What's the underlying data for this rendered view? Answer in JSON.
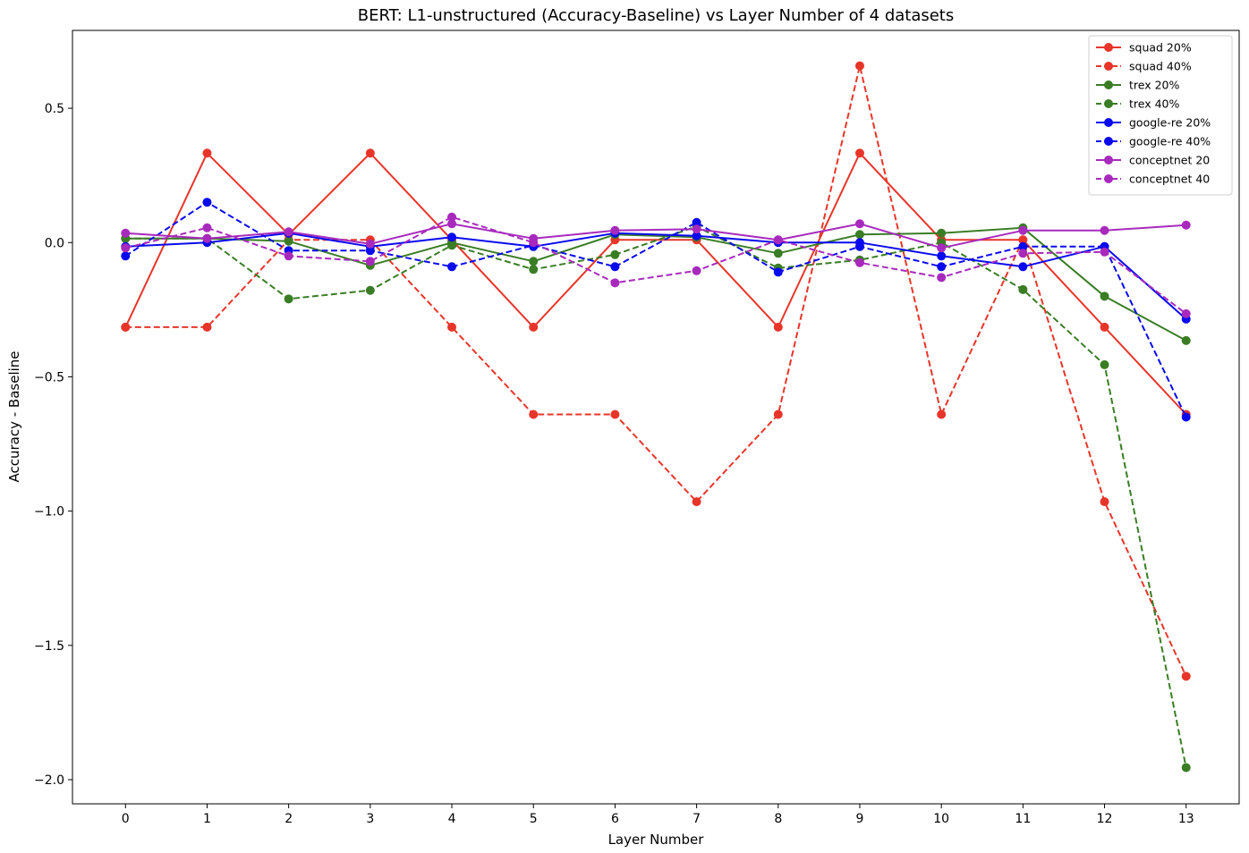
{
  "chart_data": {
    "type": "line",
    "title": "BERT: L1-unstructured (Accuracy-Baseline) vs Layer Number of 4 datasets",
    "xlabel": "Layer Number",
    "ylabel": "Accuracy - Baseline",
    "x": [
      0,
      1,
      2,
      3,
      4,
      5,
      6,
      7,
      8,
      9,
      10,
      11,
      12,
      13
    ],
    "xlim": [
      -0.65,
      13.65
    ],
    "ylim": [
      -2.09,
      0.79
    ],
    "xticks": [
      "0",
      "1",
      "2",
      "3",
      "4",
      "5",
      "6",
      "7",
      "8",
      "9",
      "10",
      "11",
      "12",
      "13"
    ],
    "yticks": [
      {
        "value": 0.5,
        "label": "0.5"
      },
      {
        "value": 0.0,
        "label": "0.0"
      },
      {
        "value": -0.5,
        "label": "−0.5"
      },
      {
        "value": -1.0,
        "label": "−1.0"
      },
      {
        "value": -1.5,
        "label": "−1.5"
      },
      {
        "value": -2.0,
        "label": "−2.0"
      }
    ],
    "grid": false,
    "legend_position": "top-right",
    "series": [
      {
        "name": "squad 20%",
        "color": "#e8352a",
        "dash": "solid",
        "values": [
          -0.315,
          0.333,
          0.03,
          0.333,
          0.01,
          -0.315,
          0.01,
          0.01,
          -0.315,
          0.333,
          0.01,
          0.01,
          -0.315,
          -0.64
        ]
      },
      {
        "name": "squad 40%",
        "color": "#e8352a",
        "dash": "dashed",
        "values": [
          -0.315,
          -0.315,
          0.01,
          0.01,
          -0.315,
          -0.64,
          -0.64,
          -0.965,
          -0.64,
          0.658,
          -0.64,
          0.01,
          -0.965,
          -1.615
        ]
      },
      {
        "name": "trex 20%",
        "color": "#3a7d25",
        "dash": "solid",
        "values": [
          0.015,
          0.015,
          0.005,
          -0.085,
          0.0,
          -0.07,
          0.03,
          0.02,
          -0.04,
          0.03,
          0.035,
          0.055,
          -0.2,
          -0.365
        ]
      },
      {
        "name": "trex 40%",
        "color": "#3a7d25",
        "dash": "dashed",
        "values": [
          0.015,
          0.015,
          -0.21,
          -0.178,
          -0.01,
          -0.1,
          -0.045,
          0.06,
          -0.095,
          -0.065,
          0.0,
          -0.175,
          -0.455,
          -1.955
        ]
      },
      {
        "name": "google-re 20%",
        "color": "#0a0aee",
        "dash": "solid",
        "values": [
          -0.015,
          0.0,
          0.035,
          -0.015,
          0.02,
          -0.015,
          0.035,
          0.025,
          0.0,
          0.0,
          -0.05,
          -0.09,
          -0.015,
          -0.285
        ]
      },
      {
        "name": "google-re 40%",
        "color": "#0a0aee",
        "dash": "dashed",
        "values": [
          -0.05,
          0.15,
          -0.03,
          -0.03,
          -0.09,
          -0.01,
          -0.09,
          0.075,
          -0.11,
          -0.015,
          -0.09,
          -0.015,
          -0.015,
          -0.65
        ]
      },
      {
        "name": "conceptnet 20",
        "color": "#a82abd",
        "dash": "solid",
        "values": [
          0.035,
          0.015,
          0.04,
          -0.005,
          0.07,
          0.015,
          0.045,
          0.05,
          0.01,
          0.07,
          -0.02,
          0.045,
          0.045,
          0.065
        ]
      },
      {
        "name": "conceptnet 40",
        "color": "#a82abd",
        "dash": "dashed",
        "values": [
          -0.02,
          0.055,
          -0.05,
          -0.07,
          0.095,
          0.0,
          -0.15,
          -0.105,
          0.01,
          -0.075,
          -0.13,
          -0.04,
          -0.035,
          -0.265
        ]
      }
    ]
  }
}
